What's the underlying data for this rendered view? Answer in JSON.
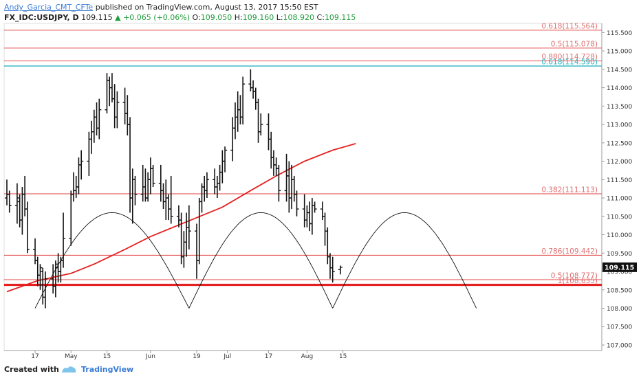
{
  "header": {
    "author": "Andy_Garcia_CMT_CFTe",
    "published": "published on TradingView.com, August 13, 2017 15:50 EST",
    "symbol": "FX_IDC:USDJPY, D",
    "last": "109.115",
    "change": "+0.065 (+0.06%)",
    "open_label": "O:",
    "open": "109.050",
    "high_label": "H:",
    "high": "109.160",
    "low_label": "L:",
    "low": "108.920",
    "close_label": "C:",
    "close": "109.115"
  },
  "footer": {
    "created_with": "Created with",
    "brand": "TradingView"
  },
  "colors": {
    "fib_line": "#e04040",
    "fib_text": "#e07070",
    "teal_line": "#2ab3c0",
    "ma_line": "#e52020",
    "price_bar": "#111111",
    "support": "#e52020",
    "arc": "#111111"
  },
  "chart_data": {
    "type": "ohlc",
    "symbol": "FX_IDC:USDJPY",
    "timeframe": "D",
    "ylim": [
      106.85,
      115.75
    ],
    "y_ticks": [
      107.0,
      107.5,
      108.0,
      108.5,
      109.0,
      109.5,
      110.0,
      110.5,
      111.0,
      111.5,
      112.0,
      112.5,
      113.0,
      113.5,
      114.0,
      114.5,
      115.0,
      115.5
    ],
    "y_tick_labels": [
      "107.000",
      "107.500",
      "108.000",
      "108.500",
      "109.000",
      "109.500",
      "110.000",
      "110.500",
      "111.000",
      "111.500",
      "112.000",
      "112.500",
      "113.000",
      "113.500",
      "114.000",
      "114.500",
      "115.000",
      "115.500"
    ],
    "x_tick_labels": [
      "17",
      "May",
      "15",
      "Jun",
      "19",
      "Jul",
      "17",
      "Aug",
      "15"
    ],
    "x_tick_dates": [
      "2017-04-17",
      "2017-05-01",
      "2017-05-15",
      "2017-06-01",
      "2017-06-19",
      "2017-07-01",
      "2017-07-17",
      "2017-08-01",
      "2017-08-15"
    ],
    "last_price": 109.115,
    "last_price_label": "109.115",
    "fib_levels": [
      {
        "label": "0.618(115.564)",
        "value": 115.564
      },
      {
        "label": "0.5(115.078)",
        "value": 115.078
      },
      {
        "label": "0.880(114.728)",
        "value": 114.728
      },
      {
        "label": "0.618(114.590)",
        "value": 114.59
      },
      {
        "label": "0.382(111.113)",
        "value": 111.113
      },
      {
        "label": "0.786(109.442)",
        "value": 109.442
      },
      {
        "label": "0.5(108.777)",
        "value": 108.777
      },
      {
        "label": "1(108.635)",
        "value": 108.635
      }
    ],
    "moving_average": [
      [
        "2017-04-06",
        108.45
      ],
      [
        "2017-04-18",
        108.75
      ],
      [
        "2017-05-01",
        108.95
      ],
      [
        "2017-05-10",
        109.2
      ],
      [
        "2017-05-22",
        109.6
      ],
      [
        "2017-06-01",
        109.95
      ],
      [
        "2017-06-15",
        110.35
      ],
      [
        "2017-06-29",
        110.75
      ],
      [
        "2017-07-10",
        111.2
      ],
      [
        "2017-07-20",
        111.6
      ],
      [
        "2017-07-31",
        112.0
      ],
      [
        "2017-08-11",
        112.3
      ],
      [
        "2017-08-20",
        112.48
      ]
    ],
    "cycle_arcs": [
      {
        "start": "2017-04-17",
        "end": "2017-06-16",
        "low": 108.0,
        "peak": 110.6
      },
      {
        "start": "2017-06-16",
        "end": "2017-08-11",
        "low": 108.0,
        "peak": 110.6
      },
      {
        "start": "2017-08-11",
        "end": "2017-10-06",
        "low": 108.0,
        "peak": 110.6
      }
    ],
    "bars": [
      [
        "2017-04-06",
        111.0,
        111.5,
        110.8,
        111.1
      ],
      [
        "2017-04-07",
        111.1,
        111.2,
        110.6,
        110.8
      ],
      [
        "2017-04-10",
        110.8,
        111.4,
        110.3,
        111.0
      ],
      [
        "2017-04-11",
        110.9,
        111.1,
        110.2,
        110.4
      ],
      [
        "2017-04-12",
        110.4,
        111.3,
        110.0,
        111.1
      ],
      [
        "2017-04-13",
        111.1,
        111.6,
        110.5,
        110.7
      ],
      [
        "2017-04-14",
        110.7,
        110.9,
        109.5,
        109.6
      ],
      [
        "2017-04-17",
        109.6,
        109.9,
        109.2,
        109.3
      ],
      [
        "2017-04-18",
        109.3,
        109.4,
        108.6,
        108.9
      ],
      [
        "2017-04-19",
        108.9,
        109.2,
        108.5,
        109.1
      ],
      [
        "2017-04-20",
        109.0,
        109.1,
        108.1,
        108.3
      ],
      [
        "2017-04-21",
        108.3,
        109.0,
        108.0,
        108.8
      ],
      [
        "2017-04-24",
        108.8,
        109.2,
        108.4,
        108.6
      ],
      [
        "2017-04-25",
        108.6,
        109.3,
        108.3,
        109.2
      ],
      [
        "2017-04-26",
        109.1,
        109.5,
        108.7,
        109.0
      ],
      [
        "2017-04-27",
        109.0,
        109.4,
        108.7,
        109.3
      ],
      [
        "2017-04-28",
        109.3,
        110.6,
        109.1,
        109.9
      ],
      [
        "2017-05-01",
        109.9,
        111.2,
        109.7,
        111.1
      ],
      [
        "2017-05-02",
        111.1,
        111.7,
        110.9,
        111.2
      ],
      [
        "2017-05-03",
        111.2,
        111.6,
        111.0,
        111.3
      ],
      [
        "2017-05-04",
        111.3,
        112.1,
        111.1,
        111.9
      ],
      [
        "2017-05-05",
        111.9,
        112.3,
        111.5,
        112.0
      ],
      [
        "2017-05-08",
        112.0,
        112.8,
        111.6,
        112.6
      ],
      [
        "2017-05-09",
        112.6,
        113.1,
        112.2,
        112.8
      ],
      [
        "2017-05-10",
        112.8,
        113.4,
        112.5,
        113.2
      ],
      [
        "2017-05-11",
        113.2,
        113.6,
        112.7,
        112.9
      ],
      [
        "2017-05-12",
        112.9,
        113.7,
        112.6,
        113.4
      ],
      [
        "2017-05-15",
        113.4,
        114.4,
        113.3,
        114.2
      ],
      [
        "2017-05-16",
        114.2,
        114.3,
        113.5,
        114.0
      ],
      [
        "2017-05-17",
        114.0,
        114.4,
        113.6,
        113.7
      ],
      [
        "2017-05-18",
        113.7,
        114.1,
        112.9,
        113.2
      ],
      [
        "2017-05-19",
        113.2,
        113.9,
        112.9,
        113.6
      ],
      [
        "2017-05-22",
        113.6,
        114.0,
        113.0,
        113.3
      ],
      [
        "2017-05-23",
        113.3,
        113.8,
        112.7,
        113.0
      ],
      [
        "2017-05-24",
        113.0,
        113.2,
        110.6,
        111.0
      ],
      [
        "2017-05-25",
        111.0,
        111.8,
        110.3,
        111.5
      ],
      [
        "2017-05-26",
        111.5,
        111.6,
        110.8,
        111.1
      ],
      [
        "2017-05-29",
        111.1,
        111.9,
        110.9,
        111.3
      ],
      [
        "2017-05-30",
        111.3,
        111.8,
        110.9,
        111.0
      ],
      [
        "2017-05-31",
        111.0,
        111.7,
        110.9,
        111.5
      ],
      [
        "2017-06-01",
        111.5,
        112.1,
        111.1,
        111.8
      ],
      [
        "2017-06-02",
        111.8,
        111.9,
        111.3,
        111.4
      ],
      [
        "2017-06-05",
        111.4,
        111.9,
        110.9,
        111.2
      ],
      [
        "2017-06-06",
        111.2,
        111.4,
        110.7,
        110.9
      ],
      [
        "2017-06-07",
        110.9,
        111.5,
        110.4,
        111.0
      ],
      [
        "2017-06-08",
        111.0,
        111.1,
        110.4,
        110.7
      ],
      [
        "2017-06-09",
        110.7,
        111.6,
        110.3,
        110.5
      ],
      [
        "2017-06-12",
        110.5,
        110.8,
        110.2,
        110.4
      ],
      [
        "2017-06-13",
        110.4,
        110.6,
        109.2,
        109.4
      ],
      [
        "2017-06-14",
        109.4,
        110.1,
        109.1,
        109.8
      ],
      [
        "2017-06-15",
        109.8,
        110.6,
        109.4,
        110.2
      ],
      [
        "2017-06-16",
        110.2,
        110.8,
        109.6,
        110.1
      ],
      [
        "2017-06-19",
        110.1,
        110.3,
        108.8,
        109.3
      ],
      [
        "2017-06-20",
        109.3,
        111.0,
        109.2,
        110.9
      ],
      [
        "2017-06-21",
        110.9,
        111.4,
        110.6,
        111.3
      ],
      [
        "2017-06-22",
        111.3,
        111.6,
        110.9,
        111.2
      ],
      [
        "2017-06-23",
        111.2,
        111.7,
        111.0,
        111.5
      ],
      [
        "2017-06-26",
        111.5,
        111.8,
        111.1,
        111.3
      ],
      [
        "2017-06-27",
        111.3,
        111.6,
        111.0,
        111.4
      ],
      [
        "2017-06-28",
        111.4,
        111.9,
        111.2,
        111.7
      ],
      [
        "2017-06-29",
        111.7,
        112.3,
        111.4,
        112.0
      ],
      [
        "2017-06-30",
        112.0,
        112.4,
        111.7,
        112.3
      ],
      [
        "2017-07-03",
        112.3,
        113.2,
        112.0,
        112.9
      ],
      [
        "2017-07-04",
        112.9,
        113.6,
        112.6,
        113.2
      ],
      [
        "2017-07-05",
        113.2,
        113.9,
        112.8,
        113.4
      ],
      [
        "2017-07-06",
        113.4,
        113.8,
        113.0,
        113.2
      ],
      [
        "2017-07-07",
        113.2,
        114.3,
        113.0,
        114.1
      ],
      [
        "2017-07-10",
        114.1,
        114.5,
        113.9,
        114.0
      ],
      [
        "2017-07-11",
        114.0,
        114.2,
        113.7,
        113.9
      ],
      [
        "2017-07-12",
        113.9,
        114.0,
        113.4,
        113.6
      ],
      [
        "2017-07-13",
        113.6,
        113.7,
        112.5,
        112.8
      ],
      [
        "2017-07-14",
        112.8,
        113.3,
        112.7,
        113.0
      ],
      [
        "2017-07-17",
        113.0,
        113.3,
        112.3,
        112.6
      ],
      [
        "2017-07-18",
        112.6,
        112.8,
        111.8,
        112.1
      ],
      [
        "2017-07-19",
        112.1,
        112.3,
        111.6,
        111.9
      ],
      [
        "2017-07-20",
        111.9,
        112.1,
        111.6,
        111.8
      ],
      [
        "2017-07-21",
        111.8,
        111.9,
        110.9,
        111.2
      ],
      [
        "2017-07-24",
        111.2,
        112.2,
        110.9,
        111.6
      ],
      [
        "2017-07-25",
        111.6,
        112.0,
        110.6,
        111.0
      ],
      [
        "2017-07-26",
        111.0,
        111.9,
        110.7,
        111.5
      ],
      [
        "2017-07-27",
        111.5,
        111.6,
        110.9,
        111.1
      ],
      [
        "2017-07-28",
        111.1,
        111.2,
        110.5,
        110.7
      ],
      [
        "2017-07-31",
        110.7,
        111.1,
        110.2,
        110.4
      ],
      [
        "2017-08-01",
        110.4,
        110.8,
        110.2,
        110.6
      ],
      [
        "2017-08-02",
        110.6,
        110.9,
        110.1,
        110.3
      ],
      [
        "2017-08-03",
        110.3,
        111.0,
        110.0,
        110.8
      ],
      [
        "2017-08-04",
        110.8,
        110.9,
        110.6,
        110.7
      ],
      [
        "2017-08-07",
        110.7,
        110.9,
        110.4,
        110.5
      ],
      [
        "2017-08-08",
        110.5,
        110.6,
        109.7,
        110.1
      ],
      [
        "2017-08-09",
        110.1,
        110.2,
        109.2,
        109.4
      ],
      [
        "2017-08-10",
        109.4,
        109.5,
        108.8,
        109.1
      ],
      [
        "2017-08-11",
        109.1,
        109.4,
        108.7,
        109.0
      ],
      [
        "2017-08-14",
        109.05,
        109.16,
        108.92,
        109.115
      ]
    ]
  }
}
